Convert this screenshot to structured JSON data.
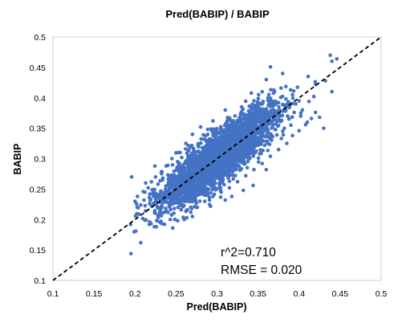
{
  "chart_data": {
    "type": "scatter",
    "title": "Pred(BABIP) / BABIP",
    "xlabel": "Pred(BABIP)",
    "ylabel": "BABIP",
    "xlim": [
      0.1,
      0.5
    ],
    "ylim": [
      0.1,
      0.5
    ],
    "xticks": [
      "0.1",
      "0.15",
      "0.2",
      "0.25",
      "0.3",
      "0.35",
      "0.4",
      "0.45",
      "0.5"
    ],
    "yticks": [
      "0.1",
      "0.15",
      "0.2",
      "0.25",
      "0.3",
      "0.35",
      "0.4",
      "0.45",
      "0.5"
    ],
    "grid": false,
    "legend": "none",
    "point_color": "#4472C4",
    "reference_line": {
      "style": "dashed",
      "color": "#000000",
      "from": [
        0.1,
        0.1
      ],
      "to": [
        0.5,
        0.5
      ]
    },
    "annotations": [
      "r^2=0.710",
      "RMSE = 0.020"
    ],
    "series": [
      {
        "values": [
          [
            0.195,
            0.144
          ],
          [
            0.196,
            0.27
          ],
          [
            0.201,
            0.181
          ],
          [
            0.207,
            0.162
          ],
          [
            0.207,
            0.224
          ],
          [
            0.211,
            0.232
          ],
          [
            0.213,
            0.26
          ],
          [
            0.218,
            0.242
          ],
          [
            0.221,
            0.249
          ],
          [
            0.224,
            0.213
          ],
          [
            0.227,
            0.228
          ],
          [
            0.228,
            0.207
          ],
          [
            0.232,
            0.219
          ],
          [
            0.234,
            0.268
          ],
          [
            0.236,
            0.237
          ],
          [
            0.238,
            0.214
          ],
          [
            0.24,
            0.289
          ],
          [
            0.242,
            0.235
          ],
          [
            0.243,
            0.2
          ],
          [
            0.244,
            0.252
          ],
          [
            0.245,
            0.268
          ],
          [
            0.246,
            0.226
          ],
          [
            0.248,
            0.273
          ],
          [
            0.249,
            0.244
          ],
          [
            0.25,
            0.253
          ],
          [
            0.252,
            0.295
          ],
          [
            0.253,
            0.227
          ],
          [
            0.255,
            0.26
          ],
          [
            0.257,
            0.302
          ],
          [
            0.258,
            0.235
          ],
          [
            0.26,
            0.278
          ],
          [
            0.261,
            0.246
          ],
          [
            0.262,
            0.262
          ],
          [
            0.264,
            0.216
          ],
          [
            0.265,
            0.285
          ],
          [
            0.266,
            0.25
          ],
          [
            0.268,
            0.272
          ],
          [
            0.269,
            0.296
          ],
          [
            0.27,
            0.241
          ],
          [
            0.272,
            0.264
          ],
          [
            0.273,
            0.311
          ],
          [
            0.274,
            0.229
          ],
          [
            0.276,
            0.28
          ],
          [
            0.277,
            0.258
          ],
          [
            0.278,
            0.297
          ],
          [
            0.28,
            0.271
          ],
          [
            0.281,
            0.243
          ],
          [
            0.282,
            0.318
          ],
          [
            0.284,
            0.286
          ],
          [
            0.285,
            0.262
          ],
          [
            0.286,
            0.302
          ],
          [
            0.288,
            0.247
          ],
          [
            0.289,
            0.279
          ],
          [
            0.29,
            0.33
          ],
          [
            0.292,
            0.293
          ],
          [
            0.293,
            0.268
          ],
          [
            0.294,
            0.31
          ],
          [
            0.296,
            0.255
          ],
          [
            0.297,
            0.288
          ],
          [
            0.298,
            0.322
          ],
          [
            0.3,
            0.3
          ],
          [
            0.301,
            0.274
          ],
          [
            0.302,
            0.342
          ],
          [
            0.304,
            0.312
          ],
          [
            0.305,
            0.26
          ],
          [
            0.306,
            0.296
          ],
          [
            0.308,
            0.33
          ],
          [
            0.309,
            0.283
          ],
          [
            0.31,
            0.318
          ],
          [
            0.312,
            0.352
          ],
          [
            0.313,
            0.305
          ],
          [
            0.314,
            0.27
          ],
          [
            0.316,
            0.336
          ],
          [
            0.317,
            0.292
          ],
          [
            0.318,
            0.322
          ],
          [
            0.32,
            0.36
          ],
          [
            0.321,
            0.31
          ],
          [
            0.322,
            0.282
          ],
          [
            0.324,
            0.344
          ],
          [
            0.325,
            0.326
          ],
          [
            0.326,
            0.3
          ],
          [
            0.328,
            0.366
          ],
          [
            0.329,
            0.316
          ],
          [
            0.33,
            0.342
          ],
          [
            0.332,
            0.292
          ],
          [
            0.333,
            0.33
          ],
          [
            0.334,
            0.372
          ],
          [
            0.336,
            0.35
          ],
          [
            0.337,
            0.318
          ],
          [
            0.338,
            0.3
          ],
          [
            0.34,
            0.36
          ],
          [
            0.341,
            0.336
          ],
          [
            0.342,
            0.382
          ],
          [
            0.344,
            0.312
          ],
          [
            0.345,
            0.346
          ],
          [
            0.346,
            0.368
          ],
          [
            0.348,
            0.326
          ],
          [
            0.349,
            0.388
          ],
          [
            0.35,
            0.352
          ],
          [
            0.352,
            0.308
          ],
          [
            0.353,
            0.376
          ],
          [
            0.354,
            0.34
          ],
          [
            0.356,
            0.394
          ],
          [
            0.357,
            0.36
          ],
          [
            0.358,
            0.322
          ],
          [
            0.36,
            0.382
          ],
          [
            0.361,
            0.346
          ],
          [
            0.362,
            0.4
          ],
          [
            0.364,
            0.366
          ],
          [
            0.365,
            0.332
          ],
          [
            0.367,
            0.386
          ],
          [
            0.368,
            0.356
          ],
          [
            0.37,
            0.41
          ],
          [
            0.372,
            0.372
          ],
          [
            0.373,
            0.339
          ],
          [
            0.375,
            0.392
          ],
          [
            0.377,
            0.362
          ],
          [
            0.378,
            0.416
          ],
          [
            0.38,
            0.378
          ],
          [
            0.382,
            0.35
          ],
          [
            0.384,
            0.398
          ],
          [
            0.386,
            0.37
          ],
          [
            0.388,
            0.384
          ],
          [
            0.39,
            0.355
          ],
          [
            0.392,
            0.405
          ],
          [
            0.394,
            0.376
          ],
          [
            0.396,
            0.39
          ],
          [
            0.4,
            0.395
          ],
          [
            0.402,
            0.37
          ],
          [
            0.404,
            0.38
          ],
          [
            0.41,
            0.36
          ],
          [
            0.412,
            0.394
          ],
          [
            0.418,
            0.402
          ],
          [
            0.42,
            0.376
          ],
          [
            0.43,
            0.35
          ],
          [
            0.432,
            0.428
          ],
          [
            0.438,
            0.47
          ],
          [
            0.44,
            0.46
          ],
          [
            0.44,
            0.41
          ],
          [
            0.446,
            0.464
          ],
          [
            0.38,
            0.44
          ],
          [
            0.355,
            0.41
          ],
          [
            0.36,
            0.43
          ],
          [
            0.345,
            0.395
          ],
          [
            0.33,
            0.385
          ],
          [
            0.31,
            0.38
          ],
          [
            0.295,
            0.362
          ],
          [
            0.28,
            0.352
          ],
          [
            0.27,
            0.34
          ],
          [
            0.262,
            0.325
          ],
          [
            0.255,
            0.31
          ],
          [
            0.245,
            0.3
          ],
          [
            0.238,
            0.288
          ],
          [
            0.232,
            0.278
          ],
          [
            0.225,
            0.27
          ],
          [
            0.22,
            0.262
          ],
          [
            0.216,
            0.252
          ],
          [
            0.21,
            0.246
          ],
          [
            0.203,
            0.238
          ],
          [
            0.2,
            0.23
          ],
          [
            0.26,
            0.2
          ],
          [
            0.268,
            0.212
          ],
          [
            0.275,
            0.22
          ],
          [
            0.285,
            0.23
          ],
          [
            0.295,
            0.238
          ],
          [
            0.305,
            0.245
          ],
          [
            0.315,
            0.252
          ],
          [
            0.325,
            0.262
          ],
          [
            0.335,
            0.272
          ],
          [
            0.345,
            0.282
          ],
          [
            0.355,
            0.292
          ],
          [
            0.365,
            0.304
          ],
          [
            0.375,
            0.315
          ],
          [
            0.385,
            0.325
          ],
          [
            0.392,
            0.338
          ],
          [
            0.4,
            0.346
          ],
          [
            0.408,
            0.356
          ],
          [
            0.415,
            0.366
          ],
          [
            0.425,
            0.368
          ],
          [
            0.36,
            0.282
          ],
          [
            0.246,
            0.186
          ],
          [
            0.252,
            0.198
          ],
          [
            0.236,
            0.192
          ],
          [
            0.226,
            0.188
          ],
          [
            0.292,
            0.222
          ],
          [
            0.332,
            0.248
          ],
          [
            0.344,
            0.256
          ],
          [
            0.31,
            0.232
          ],
          [
            0.318,
            0.238
          ],
          [
            0.27,
            0.205
          ]
        ]
      }
    ]
  }
}
